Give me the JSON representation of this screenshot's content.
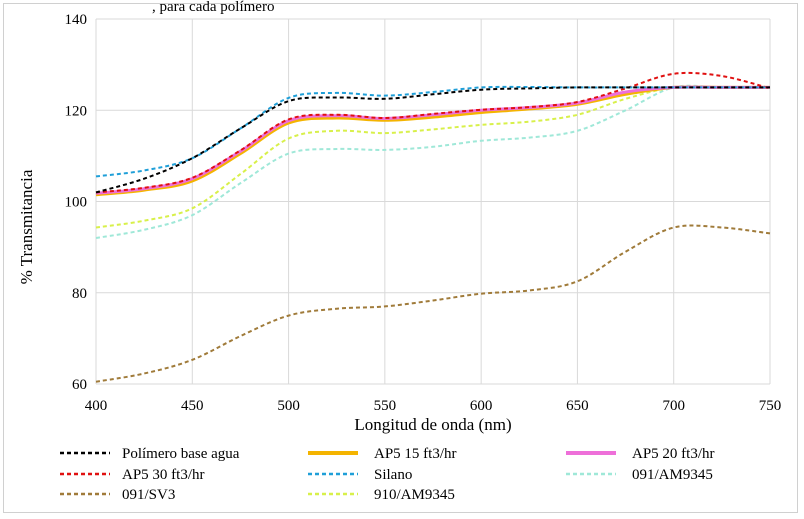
{
  "chart_data": {
    "type": "line",
    "title_fragment": ", para cada polímero",
    "xlabel": "Longitud de onda (nm)",
    "ylabel": "% Transmitancia",
    "xlim": [
      400,
      750
    ],
    "ylim": [
      60,
      140
    ],
    "xticks": [
      400,
      450,
      500,
      550,
      600,
      650,
      700,
      750
    ],
    "yticks": [
      60,
      80,
      100,
      120,
      140
    ],
    "xtick_labels": [
      "400",
      "450",
      "500",
      "550",
      "600",
      "650",
      "700",
      "750"
    ],
    "ytick_labels": [
      "60",
      "80",
      "100",
      "120",
      "140"
    ],
    "grid": true,
    "legend_position": "bottom",
    "series": [
      {
        "name": "Polímero base agua",
        "color": "#000000",
        "style": "dashed",
        "x": [
          400,
          425,
          450,
          475,
          500,
          525,
          550,
          575,
          600,
          625,
          650,
          675,
          700,
          725,
          750
        ],
        "y": [
          102,
          105,
          109.5,
          116,
          122,
          122.8,
          122.5,
          123.5,
          124.5,
          124.8,
          125,
          125,
          125,
          125,
          125
        ]
      },
      {
        "name": "AP5 15 ft3/hr",
        "color": "#f4b400",
        "style": "solid",
        "x": [
          400,
          425,
          450,
          475,
          500,
          525,
          550,
          575,
          600,
          625,
          650,
          675,
          700,
          725,
          750
        ],
        "y": [
          101.5,
          102.5,
          104.5,
          110.5,
          117.2,
          118.3,
          117.8,
          118.5,
          119.5,
          120.3,
          121.3,
          123.5,
          125,
          125,
          125
        ]
      },
      {
        "name": "AP5 20 ft3/hr",
        "color": "#ee6fd9",
        "style": "solid",
        "x": [
          400,
          425,
          450,
          475,
          500,
          525,
          550,
          575,
          600,
          625,
          650,
          675,
          700,
          725,
          750
        ],
        "y": [
          101.8,
          102.8,
          105,
          111,
          117.7,
          118.8,
          118.2,
          119,
          120,
          120.6,
          121.6,
          124,
          125,
          125,
          125
        ]
      },
      {
        "name": "AP5 30 ft3/hr",
        "color": "#e01010",
        "style": "dashed",
        "x": [
          400,
          425,
          450,
          475,
          500,
          525,
          550,
          575,
          600,
          625,
          650,
          675,
          700,
          725,
          750
        ],
        "y": [
          102,
          103,
          105.2,
          111.2,
          118,
          119,
          118.3,
          119.2,
          120.1,
          120.7,
          121.8,
          124.8,
          128,
          127.5,
          124.8
        ]
      },
      {
        "name": "Silano",
        "color": "#1f9fd8",
        "style": "dashed",
        "x": [
          400,
          425,
          450,
          475,
          500,
          525,
          550,
          575,
          600,
          625,
          650,
          675,
          700,
          725,
          750
        ],
        "y": [
          105.5,
          106.8,
          109.5,
          116,
          122.7,
          123.8,
          123.2,
          124,
          125,
          125.1,
          125,
          125,
          125,
          125,
          125
        ]
      },
      {
        "name": "091/AM9345",
        "color": "#9fe8d8",
        "style": "dashed",
        "x": [
          400,
          425,
          450,
          475,
          500,
          525,
          550,
          575,
          600,
          625,
          650,
          675,
          700,
          725,
          750
        ],
        "y": [
          92,
          93.8,
          97,
          104,
          110.5,
          111.5,
          111.3,
          112,
          113.3,
          114,
          115.5,
          120,
          125,
          125,
          125
        ]
      },
      {
        "name": "091/SV3",
        "color": "#a07b3a",
        "style": "dashed",
        "x": [
          400,
          425,
          450,
          475,
          500,
          525,
          550,
          575,
          600,
          625,
          650,
          675,
          700,
          725,
          750
        ],
        "y": [
          60.5,
          62.3,
          65.3,
          70.5,
          75,
          76.5,
          77,
          78.3,
          79.8,
          80.5,
          82.5,
          89,
          94.3,
          94.3,
          93
        ]
      },
      {
        "name": "910/AM9345",
        "color": "#d8f04a",
        "style": "dashed",
        "x": [
          400,
          425,
          450,
          475,
          500,
          525,
          550,
          575,
          600,
          625,
          650,
          675,
          700,
          725,
          750
        ],
        "y": [
          94.3,
          95.8,
          98.5,
          106,
          113.8,
          115.5,
          115,
          115.8,
          116.8,
          117.5,
          119,
          122.5,
          125,
          125,
          125
        ]
      }
    ]
  }
}
